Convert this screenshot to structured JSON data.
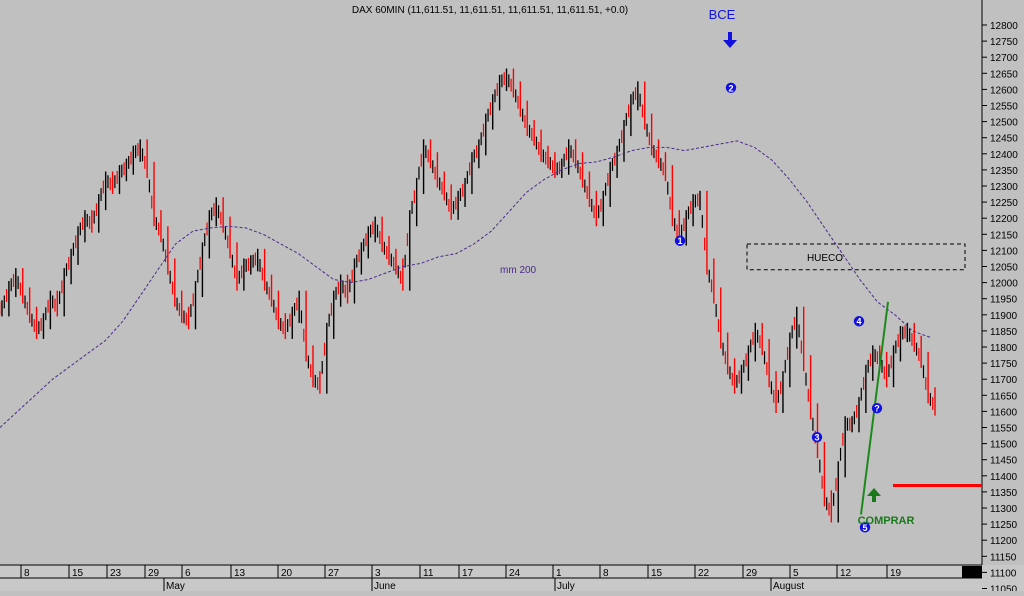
{
  "chart_data": {
    "type": "line",
    "title": "DAX 60MIN (11,611.51, 11,611.51, 11,611.51, 11,611.51, +0.0)",
    "ylim": [
      11000,
      12850
    ],
    "y_ticks": [
      12800,
      12750,
      12700,
      12650,
      12600,
      12550,
      12500,
      12450,
      12400,
      12350,
      12300,
      12250,
      12200,
      12150,
      12100,
      12050,
      12000,
      11950,
      11900,
      11850,
      11800,
      11750,
      11700,
      11650,
      11600,
      11550,
      11500,
      11450,
      11400,
      11350,
      11300,
      11250,
      11200,
      11150,
      11100,
      11050
    ],
    "x_day_ticks": [
      "8",
      "15",
      "23",
      "29",
      "6",
      "13",
      "20",
      "27",
      "3",
      "11",
      "17",
      "24",
      "1",
      "8",
      "15",
      "22",
      "29",
      "5",
      "12",
      "19"
    ],
    "x_month_labels": [
      "May",
      "June",
      "July",
      "August"
    ],
    "price_series": {
      "name": "",
      "values": [
        11920,
        11980,
        12020,
        11960,
        11900,
        11850,
        11880,
        11950,
        11920,
        12020,
        12080,
        12150,
        12200,
        12180,
        12250,
        12320,
        12300,
        12340,
        12360,
        12400,
        12420,
        12350,
        12200,
        12150,
        12050,
        11950,
        11900,
        11880,
        11980,
        12100,
        12200,
        12240,
        12180,
        12100,
        12000,
        12050,
        12060,
        12080,
        12000,
        11950,
        11880,
        11850,
        11900,
        11950,
        11780,
        11700,
        11680,
        11850,
        11950,
        12000,
        11960,
        12050,
        12100,
        12150,
        12180,
        12120,
        12080,
        12050,
        12000,
        12200,
        12300,
        12420,
        12380,
        12320,
        12280,
        12220,
        12260,
        12300,
        12380,
        12420,
        12500,
        12560,
        12620,
        12640,
        12600,
        12540,
        12480,
        12450,
        12400,
        12380,
        12350,
        12360,
        12420,
        12380,
        12320,
        12260,
        12200,
        12260,
        12350,
        12400,
        12480,
        12560,
        12600,
        12500,
        12420,
        12380,
        12340,
        12200,
        12140,
        12200,
        12250,
        12260,
        12050,
        11960,
        11820,
        11740,
        11680,
        11720,
        11780,
        11850,
        11800,
        11700,
        11620,
        11700,
        11820,
        11900,
        11750,
        11600,
        11480,
        11330,
        11280,
        11420,
        11560,
        11560,
        11620,
        11720,
        11780,
        11760,
        11700,
        11780,
        11840,
        11850,
        11810,
        11760,
        11650,
        11612
      ]
    },
    "ma_series": {
      "name": "mm 200",
      "values": [
        11550,
        11600,
        11650,
        11700,
        11740,
        11780,
        11820,
        11880,
        11960,
        12040,
        12120,
        12160,
        12170,
        12175,
        12170,
        12150,
        12120,
        12090,
        12050,
        12010,
        12000,
        12010,
        12030,
        12050,
        12060,
        12080,
        12090,
        12120,
        12160,
        12220,
        12280,
        12320,
        12350,
        12370,
        12375,
        12390,
        12410,
        12420,
        12420,
        12410,
        12420,
        12430,
        12440,
        12420,
        12380,
        12320,
        12250,
        12170,
        12090,
        12010,
        11940,
        11900,
        11850,
        11830
      ]
    },
    "ma_label": "mm 200",
    "annotations": {
      "bce_text": "BCE",
      "hueco_text": "HUECO",
      "comprar_text": "COMPRAR",
      "wave_marks": [
        "1",
        "2",
        "3",
        "4",
        "5",
        "?"
      ]
    },
    "hueco_range": [
      12040,
      12120
    ],
    "trend_line": [
      [
        11280,
        11940
      ]
    ],
    "support_level": 11370,
    "colors": {
      "background": "#c0c0c0",
      "up_candle": "#000000",
      "down_candle": "#ff0000",
      "ma": "#4b2a8a",
      "wave_marker": "#1010e0",
      "bce": "#1010e0",
      "comprar": "#1a7a1a",
      "support": "#ff0000",
      "trend": "#1a8a1a"
    }
  }
}
